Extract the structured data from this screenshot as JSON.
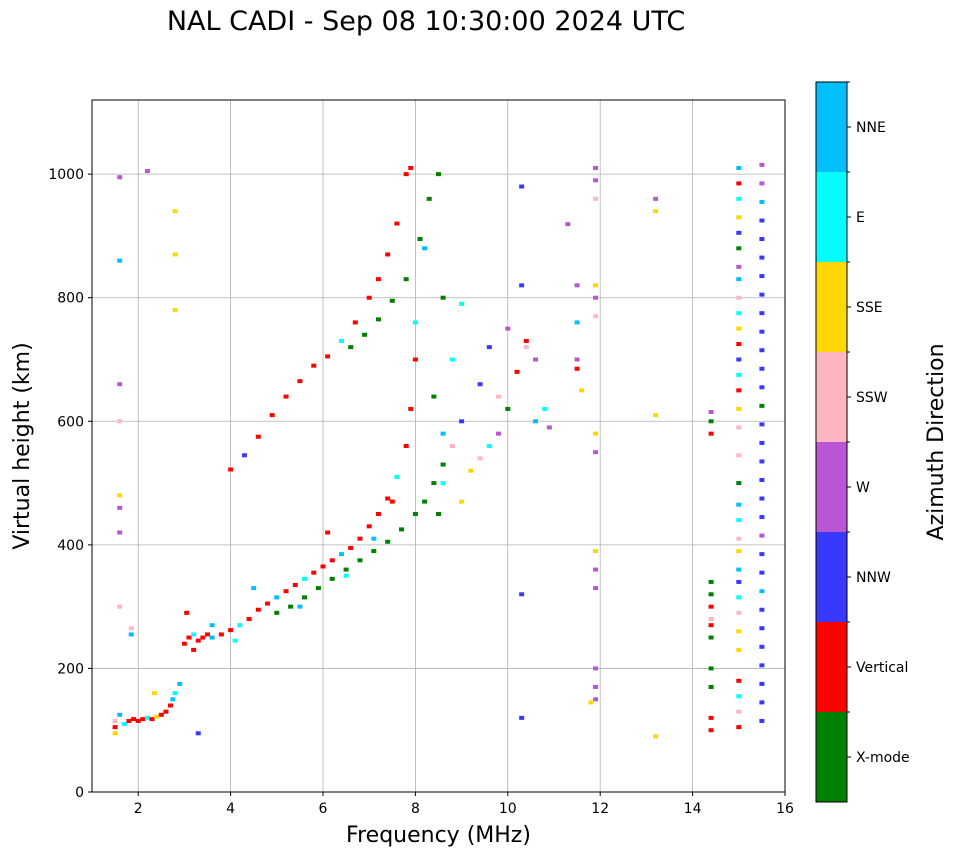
{
  "chart_data": {
    "type": "scatter",
    "title": "NAL CADI - Sep 08 10:30:00 2024 UTC",
    "xlabel": "Frequency (MHz)",
    "ylabel": "Virtual height (km)",
    "xlim": [
      1,
      16
    ],
    "ylim": [
      0,
      1120
    ],
    "xticks": [
      2,
      4,
      6,
      8,
      10,
      12,
      14,
      16
    ],
    "yticks": [
      0,
      200,
      400,
      600,
      800,
      1000
    ],
    "grid": true,
    "colorbar": {
      "label": "Azimuth Direction",
      "categories": [
        "X-mode",
        "Vertical",
        "NNW",
        "W",
        "SSW",
        "SSE",
        "E",
        "NNE"
      ],
      "colors": [
        "#008000",
        "#ff0000",
        "#3838ff",
        "#ba55d3",
        "#ffb6c1",
        "#ffd700",
        "#00ffff",
        "#00bfff"
      ]
    },
    "point_format": [
      "frequency_MHz",
      "virtual_height_km",
      "category_index"
    ],
    "points": [
      [
        1.5,
        95,
        5
      ],
      [
        1.5,
        105,
        1
      ],
      [
        1.5,
        115,
        4
      ],
      [
        1.6,
        125,
        7
      ],
      [
        1.7,
        110,
        6
      ],
      [
        1.8,
        115,
        1
      ],
      [
        1.9,
        118,
        1
      ],
      [
        2.0,
        115,
        1
      ],
      [
        2.1,
        118,
        1
      ],
      [
        2.2,
        120,
        6
      ],
      [
        2.3,
        118,
        1
      ],
      [
        2.4,
        122,
        5
      ],
      [
        2.5,
        125,
        1
      ],
      [
        2.6,
        130,
        1
      ],
      [
        2.7,
        140,
        1
      ],
      [
        2.75,
        150,
        7
      ],
      [
        2.8,
        160,
        6
      ],
      [
        2.9,
        175,
        7
      ],
      [
        1.6,
        300,
        4
      ],
      [
        1.6,
        420,
        3
      ],
      [
        1.6,
        460,
        3
      ],
      [
        1.6,
        480,
        5
      ],
      [
        1.6,
        600,
        4
      ],
      [
        1.6,
        660,
        3
      ],
      [
        1.6,
        860,
        7
      ],
      [
        1.6,
        995,
        3
      ],
      [
        2.2,
        1005,
        3
      ],
      [
        2.8,
        940,
        5
      ],
      [
        2.8,
        870,
        5
      ],
      [
        2.8,
        780,
        5
      ],
      [
        1.85,
        255,
        7
      ],
      [
        1.85,
        265,
        4
      ],
      [
        2.35,
        160,
        5
      ],
      [
        3.3,
        95,
        2
      ],
      [
        3.0,
        240,
        1
      ],
      [
        3.1,
        250,
        1
      ],
      [
        3.2,
        255,
        6
      ],
      [
        3.3,
        245,
        1
      ],
      [
        3.4,
        250,
        1
      ],
      [
        3.5,
        255,
        1
      ],
      [
        3.6,
        250,
        7
      ],
      [
        3.8,
        255,
        1
      ],
      [
        4.0,
        262,
        1
      ],
      [
        4.2,
        270,
        6
      ],
      [
        4.4,
        280,
        1
      ],
      [
        4.6,
        295,
        1
      ],
      [
        4.8,
        305,
        1
      ],
      [
        5.0,
        315,
        7
      ],
      [
        5.2,
        325,
        1
      ],
      [
        5.4,
        335,
        1
      ],
      [
        5.6,
        345,
        6
      ],
      [
        5.8,
        355,
        1
      ],
      [
        6.0,
        365,
        1
      ],
      [
        6.2,
        375,
        1
      ],
      [
        6.4,
        385,
        7
      ],
      [
        6.6,
        395,
        1
      ],
      [
        6.8,
        410,
        1
      ],
      [
        7.0,
        430,
        1
      ],
      [
        7.2,
        450,
        1
      ],
      [
        7.4,
        475,
        1
      ],
      [
        7.6,
        510,
        6
      ],
      [
        7.8,
        560,
        1
      ],
      [
        7.9,
        620,
        1
      ],
      [
        8.0,
        700,
        1
      ],
      [
        3.05,
        290,
        1
      ],
      [
        3.2,
        230,
        1
      ],
      [
        3.6,
        270,
        7
      ],
      [
        4.1,
        245,
        6
      ],
      [
        4.5,
        330,
        7
      ],
      [
        5.5,
        300,
        7
      ],
      [
        6.1,
        420,
        1
      ],
      [
        6.5,
        350,
        6
      ],
      [
        7.1,
        410,
        7
      ],
      [
        7.5,
        470,
        1
      ],
      [
        5.0,
        290,
        0
      ],
      [
        5.3,
        300,
        0
      ],
      [
        5.6,
        315,
        0
      ],
      [
        5.9,
        330,
        0
      ],
      [
        6.2,
        345,
        0
      ],
      [
        6.5,
        360,
        0
      ],
      [
        6.8,
        375,
        0
      ],
      [
        7.1,
        390,
        0
      ],
      [
        7.4,
        405,
        0
      ],
      [
        7.7,
        425,
        0
      ],
      [
        8.0,
        450,
        0
      ],
      [
        8.2,
        470,
        0
      ],
      [
        8.4,
        500,
        0
      ],
      [
        8.6,
        530,
        0
      ],
      [
        4.0,
        522,
        1
      ],
      [
        4.3,
        545,
        2
      ],
      [
        4.6,
        575,
        1
      ],
      [
        4.9,
        610,
        1
      ],
      [
        5.2,
        640,
        1
      ],
      [
        5.5,
        665,
        1
      ],
      [
        5.8,
        690,
        1
      ],
      [
        6.1,
        705,
        1
      ],
      [
        6.4,
        730,
        6
      ],
      [
        6.7,
        760,
        1
      ],
      [
        7.0,
        800,
        1
      ],
      [
        7.2,
        830,
        1
      ],
      [
        7.4,
        870,
        1
      ],
      [
        7.6,
        920,
        1
      ],
      [
        7.8,
        1000,
        1
      ],
      [
        7.9,
        1010,
        1
      ],
      [
        6.6,
        720,
        0
      ],
      [
        6.9,
        740,
        0
      ],
      [
        7.2,
        765,
        0
      ],
      [
        7.5,
        795,
        0
      ],
      [
        7.8,
        830,
        0
      ],
      [
        8.1,
        895,
        0
      ],
      [
        8.3,
        960,
        0
      ],
      [
        8.5,
        1000,
        0
      ],
      [
        8.0,
        760,
        6
      ],
      [
        8.2,
        880,
        7
      ],
      [
        8.5,
        450,
        0
      ],
      [
        8.6,
        500,
        6
      ],
      [
        8.8,
        560,
        4
      ],
      [
        9.0,
        600,
        2
      ],
      [
        9.2,
        520,
        5
      ],
      [
        9.4,
        540,
        4
      ],
      [
        9.6,
        560,
        6
      ],
      [
        9.8,
        580,
        3
      ],
      [
        10.0,
        620,
        0
      ],
      [
        10.2,
        680,
        1
      ],
      [
        10.4,
        720,
        4
      ],
      [
        10.6,
        700,
        3
      ],
      [
        10.8,
        620,
        6
      ],
      [
        9.0,
        470,
        5
      ],
      [
        8.6,
        580,
        7
      ],
      [
        8.4,
        640,
        0
      ],
      [
        8.8,
        700,
        6
      ],
      [
        9.0,
        790,
        6
      ],
      [
        8.6,
        800,
        0
      ],
      [
        9.6,
        720,
        2
      ],
      [
        10.0,
        750,
        3
      ],
      [
        10.4,
        730,
        1
      ],
      [
        9.4,
        660,
        2
      ],
      [
        9.8,
        640,
        4
      ],
      [
        10.6,
        600,
        7
      ],
      [
        10.9,
        590,
        3
      ],
      [
        11.9,
        1010,
        3
      ],
      [
        11.9,
        990,
        3
      ],
      [
        11.9,
        960,
        4
      ],
      [
        11.9,
        820,
        5
      ],
      [
        11.9,
        800,
        3
      ],
      [
        11.9,
        770,
        4
      ],
      [
        11.9,
        580,
        5
      ],
      [
        11.9,
        550,
        3
      ],
      [
        11.9,
        390,
        5
      ],
      [
        11.9,
        360,
        3
      ],
      [
        11.9,
        330,
        3
      ],
      [
        11.9,
        200,
        3
      ],
      [
        11.9,
        170,
        3
      ],
      [
        11.9,
        150,
        3
      ],
      [
        11.5,
        820,
        3
      ],
      [
        11.5,
        760,
        7
      ],
      [
        11.5,
        700,
        3
      ],
      [
        11.3,
        919,
        3
      ],
      [
        11.5,
        685,
        1
      ],
      [
        11.6,
        650,
        5
      ],
      [
        11.8,
        145,
        5
      ],
      [
        13.2,
        960,
        3
      ],
      [
        13.2,
        940,
        5
      ],
      [
        13.2,
        610,
        5
      ],
      [
        13.2,
        90,
        5
      ],
      [
        10.3,
        980,
        2
      ],
      [
        10.3,
        820,
        2
      ],
      [
        10.3,
        320,
        2
      ],
      [
        10.3,
        120,
        2
      ],
      [
        14.4,
        100,
        1
      ],
      [
        14.4,
        120,
        1
      ],
      [
        14.4,
        170,
        0
      ],
      [
        14.4,
        200,
        0
      ],
      [
        14.4,
        250,
        0
      ],
      [
        14.4,
        270,
        1
      ],
      [
        14.4,
        280,
        4
      ],
      [
        14.4,
        300,
        1
      ],
      [
        14.4,
        320,
        0
      ],
      [
        14.4,
        340,
        0
      ],
      [
        14.4,
        580,
        1
      ],
      [
        14.4,
        600,
        0
      ],
      [
        14.4,
        615,
        3
      ],
      [
        15.0,
        105,
        1
      ],
      [
        15.0,
        130,
        4
      ],
      [
        15.0,
        155,
        6
      ],
      [
        15.0,
        180,
        1
      ],
      [
        15.0,
        230,
        5
      ],
      [
        15.0,
        260,
        5
      ],
      [
        15.0,
        290,
        4
      ],
      [
        15.0,
        315,
        6
      ],
      [
        15.0,
        340,
        2
      ],
      [
        15.0,
        360,
        7
      ],
      [
        15.0,
        390,
        5
      ],
      [
        15.0,
        410,
        4
      ],
      [
        15.0,
        440,
        6
      ],
      [
        15.0,
        465,
        7
      ],
      [
        15.0,
        500,
        0
      ],
      [
        15.0,
        545,
        4
      ],
      [
        15.0,
        590,
        4
      ],
      [
        15.0,
        620,
        5
      ],
      [
        15.0,
        650,
        1
      ],
      [
        15.0,
        675,
        6
      ],
      [
        15.0,
        700,
        2
      ],
      [
        15.0,
        725,
        1
      ],
      [
        15.0,
        750,
        5
      ],
      [
        15.0,
        775,
        6
      ],
      [
        15.0,
        800,
        4
      ],
      [
        15.0,
        830,
        7
      ],
      [
        15.0,
        850,
        3
      ],
      [
        15.0,
        880,
        0
      ],
      [
        15.0,
        905,
        2
      ],
      [
        15.0,
        930,
        5
      ],
      [
        15.0,
        960,
        6
      ],
      [
        15.0,
        985,
        1
      ],
      [
        15.0,
        1010,
        7
      ],
      [
        15.5,
        115,
        2
      ],
      [
        15.5,
        145,
        2
      ],
      [
        15.5,
        175,
        2
      ],
      [
        15.5,
        205,
        2
      ],
      [
        15.5,
        235,
        2
      ],
      [
        15.5,
        265,
        2
      ],
      [
        15.5,
        295,
        2
      ],
      [
        15.5,
        325,
        7
      ],
      [
        15.5,
        355,
        2
      ],
      [
        15.5,
        385,
        2
      ],
      [
        15.5,
        415,
        3
      ],
      [
        15.5,
        445,
        2
      ],
      [
        15.5,
        475,
        2
      ],
      [
        15.5,
        505,
        2
      ],
      [
        15.5,
        535,
        2
      ],
      [
        15.5,
        565,
        2
      ],
      [
        15.5,
        595,
        2
      ],
      [
        15.5,
        625,
        0
      ],
      [
        15.5,
        655,
        2
      ],
      [
        15.5,
        685,
        2
      ],
      [
        15.5,
        715,
        2
      ],
      [
        15.5,
        745,
        2
      ],
      [
        15.5,
        775,
        2
      ],
      [
        15.5,
        805,
        2
      ],
      [
        15.5,
        835,
        2
      ],
      [
        15.5,
        865,
        2
      ],
      [
        15.5,
        895,
        2
      ],
      [
        15.5,
        925,
        2
      ],
      [
        15.5,
        955,
        7
      ],
      [
        15.5,
        985,
        3
      ],
      [
        15.5,
        1015,
        3
      ]
    ]
  }
}
